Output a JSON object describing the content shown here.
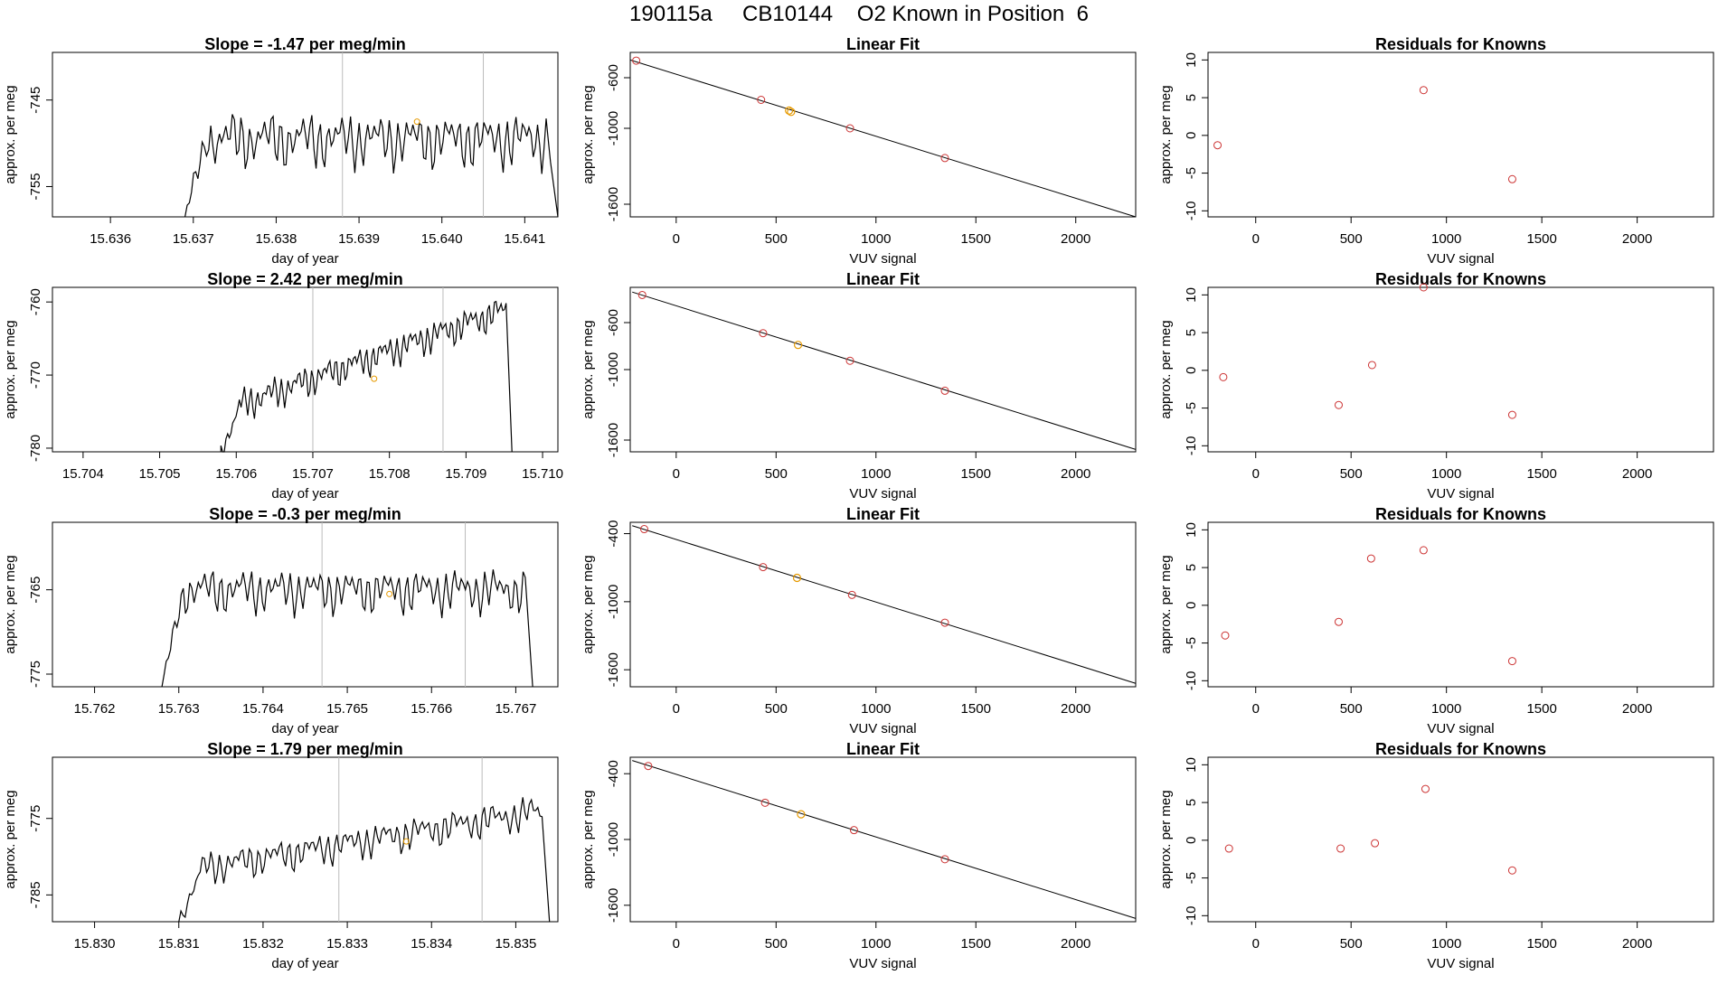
{
  "title": {
    "text": "190115a     CB10144    O2 Known in Position  6"
  },
  "labels": {
    "time_xlabel": "day of year",
    "time_ylabel": "approx. per meg",
    "fit_title": "Linear Fit",
    "fit_xlabel": "VUV signal",
    "fit_ylabel": "approx. per meg",
    "res_title": "Residuals for Knowns",
    "res_xlabel": "VUV signal",
    "res_ylabel": "approx. per meg"
  },
  "colors": {
    "line": "#000000",
    "known_point": "#cc3333",
    "sample_point": "#e69a00",
    "vline": "#bbbbbb"
  },
  "chart_data": [
    {
      "row": 1,
      "time_series": {
        "type": "line",
        "title": "Slope =  -1.47  per meg/min",
        "xlim": [
          15.6353,
          15.6414
        ],
        "ylim": [
          -758.5,
          -739.5
        ],
        "xticks": [
          "15.636",
          "15.637",
          "15.638",
          "15.639",
          "15.640",
          "15.641"
        ],
        "yticks": [
          "-745",
          "-755"
        ],
        "start": 15.6369,
        "end": 15.6414,
        "base": -749.5,
        "amp": 3.6,
        "vlines": [
          15.6388,
          15.6405
        ],
        "marker": {
          "x": 15.6397,
          "y": -747.5
        }
      },
      "fit": {
        "type": "scatter",
        "title": "Linear Fit",
        "xlim": [
          -230,
          2300
        ],
        "ylim": [
          -1700,
          -400
        ],
        "xticks": [
          "0",
          "500",
          "1000",
          "1500",
          "2000"
        ],
        "yticks": [
          "-600",
          "-1000",
          "-1600"
        ],
        "line": {
          "x": [
            -230,
            2300
          ],
          "y": [
            -460,
            -1700
          ]
        },
        "knowns": [
          {
            "x": -200,
            "y": -465
          },
          {
            "x": 425,
            "y": -775
          },
          {
            "x": 870,
            "y": -1000
          },
          {
            "x": 1345,
            "y": -1235
          }
        ],
        "samples": [
          {
            "x": 565,
            "y": -860
          },
          {
            "x": 575,
            "y": -870
          }
        ]
      },
      "residuals": {
        "type": "scatter",
        "title": "Residuals for Knowns",
        "xlim": [
          -250,
          2400
        ],
        "ylim": [
          -10.8,
          11
        ],
        "xticks": [
          "0",
          "500",
          "1000",
          "1500",
          "2000"
        ],
        "yticks": [
          "10",
          "5",
          "0",
          "-5",
          "-10"
        ],
        "points": [
          {
            "x": -200,
            "y": -1.3
          },
          {
            "x": 880,
            "y": 6
          },
          {
            "x": 1345,
            "y": -5.8
          }
        ]
      }
    },
    {
      "row": 2,
      "time_series": {
        "type": "line",
        "title": "Slope =  2.42  per meg/min",
        "xlim": [
          15.7036,
          15.7102
        ],
        "ylim": [
          -780.5,
          -758
        ],
        "xticks": [
          "15.704",
          "15.705",
          "15.706",
          "15.707",
          "15.708",
          "15.709",
          "15.710"
        ],
        "yticks": [
          "-760",
          "-770",
          "-780"
        ],
        "start": 15.7058,
        "end": 15.7096,
        "base": -775,
        "trend": 14,
        "amp": 2.5,
        "vlines": [
          15.707,
          15.7087
        ],
        "marker": {
          "x": 15.7078,
          "y": -770.5
        }
      },
      "fit": {
        "type": "scatter",
        "title": "Linear Fit",
        "xlim": [
          -230,
          2300
        ],
        "ylim": [
          -1700,
          -300
        ],
        "xticks": [
          "0",
          "500",
          "1000",
          "1500",
          "2000"
        ],
        "yticks": [
          "-600",
          "-1000",
          "-1600"
        ],
        "line": {
          "x": [
            -220,
            2300
          ],
          "y": [
            -340,
            -1680
          ]
        },
        "knowns": [
          {
            "x": -170,
            "y": -365
          },
          {
            "x": 435,
            "y": -690
          },
          {
            "x": 870,
            "y": -925
          },
          {
            "x": 1345,
            "y": -1180
          }
        ],
        "samples": [
          {
            "x": 610,
            "y": -790
          }
        ]
      },
      "residuals": {
        "type": "scatter",
        "title": "Residuals for Knowns",
        "xlim": [
          -250,
          2400
        ],
        "ylim": [
          -10.8,
          11
        ],
        "xticks": [
          "0",
          "500",
          "1000",
          "1500",
          "2000"
        ],
        "yticks": [
          "10",
          "5",
          "0",
          "-5",
          "-10"
        ],
        "points": [
          {
            "x": -170,
            "y": -0.9
          },
          {
            "x": 435,
            "y": -4.6
          },
          {
            "x": 610,
            "y": 0.7
          },
          {
            "x": 880,
            "y": 11
          },
          {
            "x": 1345,
            "y": -5.9
          }
        ]
      }
    },
    {
      "row": 3,
      "time_series": {
        "type": "line",
        "title": "Slope =  -0.3  per meg/min",
        "xlim": [
          15.7615,
          15.7675
        ],
        "ylim": [
          -776.5,
          -757
        ],
        "xticks": [
          "15.762",
          "15.763",
          "15.764",
          "15.765",
          "15.766",
          "15.767"
        ],
        "yticks": [
          "-765",
          "-775"
        ],
        "start": 15.7628,
        "end": 15.7672,
        "base": -765,
        "amp": 3.0,
        "vlines": [
          15.7647,
          15.7664
        ],
        "marker": {
          "x": 15.7655,
          "y": -765.5
        }
      },
      "fit": {
        "type": "scatter",
        "title": "Linear Fit",
        "xlim": [
          -230,
          2300
        ],
        "ylim": [
          -1750,
          -300
        ],
        "xticks": [
          "0",
          "500",
          "1000",
          "1500",
          "2000"
        ],
        "yticks": [
          "-400",
          "-1000",
          "-1600"
        ],
        "line": {
          "x": [
            -220,
            2300
          ],
          "y": [
            -330,
            -1720
          ]
        },
        "knowns": [
          {
            "x": -160,
            "y": -360
          },
          {
            "x": 435,
            "y": -695
          },
          {
            "x": 880,
            "y": -940
          },
          {
            "x": 1345,
            "y": -1185
          }
        ],
        "samples": [
          {
            "x": 605,
            "y": -790
          }
        ]
      },
      "residuals": {
        "type": "scatter",
        "title": "Residuals for Knowns",
        "xlim": [
          -250,
          2400
        ],
        "ylim": [
          -10.8,
          11
        ],
        "xticks": [
          "0",
          "500",
          "1000",
          "1500",
          "2000"
        ],
        "yticks": [
          "10",
          "5",
          "0",
          "-5",
          "-10"
        ],
        "points": [
          {
            "x": -160,
            "y": -4
          },
          {
            "x": 435,
            "y": -2.2
          },
          {
            "x": 605,
            "y": 6.2
          },
          {
            "x": 880,
            "y": 7.3
          },
          {
            "x": 1345,
            "y": -7.4
          }
        ]
      }
    },
    {
      "row": 4,
      "time_series": {
        "type": "line",
        "title": "Slope =  1.79  per meg/min",
        "xlim": [
          15.8295,
          15.8355
        ],
        "ylim": [
          -788.5,
          -767
        ],
        "xticks": [
          "15.830",
          "15.831",
          "15.832",
          "15.833",
          "15.834",
          "15.835"
        ],
        "yticks": [
          "-775",
          "-785"
        ],
        "start": 15.831,
        "end": 15.8354,
        "base": -782,
        "trend": 8,
        "amp": 2.5,
        "vlines": [
          15.8329,
          15.8346
        ],
        "marker": {
          "x": 15.8337,
          "y": -778
        }
      },
      "fit": {
        "type": "scatter",
        "title": "Linear Fit",
        "xlim": [
          -230,
          2300
        ],
        "ylim": [
          -1750,
          -250
        ],
        "xticks": [
          "0",
          "500",
          "1000",
          "1500",
          "2000"
        ],
        "yticks": [
          "-400",
          "-1000",
          "-1600"
        ],
        "line": {
          "x": [
            -220,
            2300
          ],
          "y": [
            -280,
            -1720
          ]
        },
        "knowns": [
          {
            "x": -140,
            "y": -330
          },
          {
            "x": 445,
            "y": -665
          },
          {
            "x": 890,
            "y": -915
          },
          {
            "x": 1345,
            "y": -1180
          }
        ],
        "samples": [
          {
            "x": 625,
            "y": -770
          }
        ]
      },
      "residuals": {
        "type": "scatter",
        "title": "Residuals for Knowns",
        "xlim": [
          -250,
          2400
        ],
        "ylim": [
          -10.8,
          11
        ],
        "xticks": [
          "0",
          "500",
          "1000",
          "1500",
          "2000"
        ],
        "yticks": [
          "10",
          "5",
          "0",
          "-5",
          "-10"
        ],
        "points": [
          {
            "x": -140,
            "y": -1.1
          },
          {
            "x": 445,
            "y": -1.1
          },
          {
            "x": 625,
            "y": -0.4
          },
          {
            "x": 890,
            "y": 6.8
          },
          {
            "x": 1345,
            "y": -4
          }
        ]
      }
    }
  ]
}
